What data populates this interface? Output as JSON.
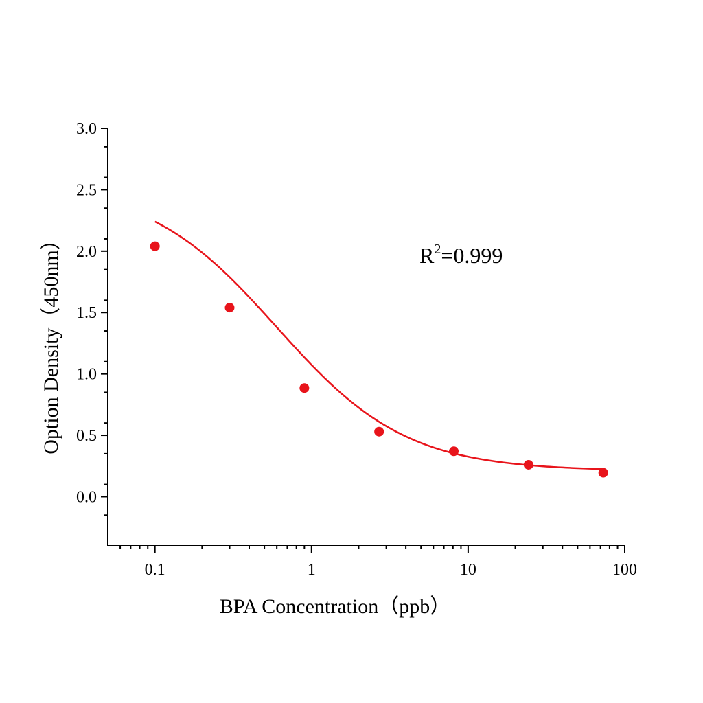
{
  "chart_data": {
    "type": "scatter",
    "xlabel": "BPA Concentration（ppb）",
    "ylabel": "Option Density（450nm）",
    "xscale": "log",
    "xlim": [
      0.05,
      100
    ],
    "ylim": [
      -0.4,
      3.0
    ],
    "x_ticks": [
      "0.1",
      "1",
      "10",
      "100"
    ],
    "y_ticks": [
      "0.0",
      "0.5",
      "1.0",
      "1.5",
      "2.0",
      "2.5",
      "3.0"
    ],
    "grid": false,
    "colors": {
      "series": "#e8141b",
      "axis": "#000000"
    },
    "annotation": {
      "base": "R",
      "sup": "2",
      "rest": "=0.999"
    },
    "series": [
      {
        "x": [
          0.1,
          0.3,
          0.9,
          2.7,
          8.1,
          24.3,
          72.9
        ],
        "y": [
          2.04,
          1.54,
          0.885,
          0.53,
          0.37,
          0.26,
          0.195
        ]
      }
    ],
    "fit": {
      "model": "4PL",
      "top": 2.55,
      "bottom": 0.21,
      "ec50": 0.6,
      "hill": 1.05
    }
  }
}
